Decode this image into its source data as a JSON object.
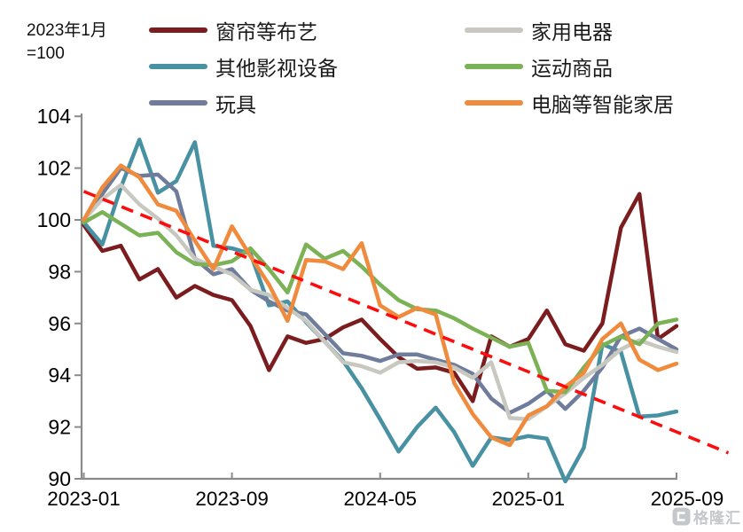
{
  "note": {
    "line1": "2023年1月",
    "line2": "=100"
  },
  "watermark": {
    "text": "格隆汇",
    "logo": "gelonghui-logo",
    "color": "#c4c8cb"
  },
  "axis_colors": {
    "axis": "#8a8a8a",
    "label": "#000000"
  },
  "chart_data": {
    "type": "line",
    "title": "",
    "xlabel": "",
    "ylabel": "",
    "ylim": [
      90,
      104
    ],
    "y_tick_step": 2,
    "grid": false,
    "legend_position": "top-two-columns",
    "x_months": [
      "2023-01",
      "2023-02",
      "2023-03",
      "2023-04",
      "2023-05",
      "2023-06",
      "2023-07",
      "2023-08",
      "2023-09",
      "2023-10",
      "2023-11",
      "2023-12",
      "2024-01",
      "2024-02",
      "2024-03",
      "2024-04",
      "2024-05",
      "2024-06",
      "2024-07",
      "2024-08",
      "2024-09",
      "2024-10",
      "2024-11",
      "2024-12",
      "2025-01",
      "2025-02",
      "2025-03",
      "2025-04",
      "2025-05",
      "2025-06",
      "2025-07",
      "2025-08",
      "2025-09"
    ],
    "x_tick_labels": [
      "2023-01",
      "2023-09",
      "2024-05",
      "2025-01",
      "2025-09"
    ],
    "x_tick_month_index": [
      0,
      8,
      16,
      24,
      32
    ],
    "series": [
      {
        "name": "窗帘等布艺",
        "color": "#7b1c1e",
        "values": [
          99.8,
          98.8,
          99.0,
          97.7,
          98.1,
          97.0,
          97.45,
          97.1,
          96.9,
          95.9,
          94.2,
          95.5,
          95.25,
          95.4,
          95.85,
          96.15,
          95.4,
          94.7,
          94.25,
          94.3,
          94.1,
          93.0,
          95.5,
          95.1,
          95.4,
          96.5,
          95.2,
          94.95,
          96.0,
          99.7,
          101.0,
          95.4,
          95.9
        ]
      },
      {
        "name": "其他影视设备",
        "color": "#4791a2",
        "values": [
          99.9,
          99.05,
          101.25,
          103.1,
          101.05,
          101.5,
          103.0,
          99.0,
          98.9,
          98.7,
          96.7,
          96.85,
          96.05,
          95.3,
          94.55,
          93.5,
          92.3,
          91.05,
          92.0,
          92.75,
          91.8,
          90.5,
          91.6,
          91.5,
          91.65,
          91.55,
          89.9,
          91.2,
          95.2,
          94.9,
          92.4,
          92.45,
          92.6
        ]
      },
      {
        "name": "玩具",
        "color": "#6f7c9b",
        "values": [
          100,
          101.0,
          102.0,
          101.7,
          101.75,
          101.1,
          98.5,
          97.9,
          98.1,
          97.3,
          96.85,
          96.5,
          96.35,
          95.6,
          94.85,
          94.75,
          94.55,
          94.8,
          94.8,
          94.6,
          94.4,
          94.05,
          93.1,
          92.55,
          92.9,
          93.4,
          92.7,
          93.4,
          94.3,
          95.5,
          95.8,
          95.4,
          95.0
        ]
      },
      {
        "name": "家用电器",
        "color": "#c8c8c0",
        "values": [
          100,
          100.8,
          101.35,
          100.6,
          100.05,
          99.4,
          98.5,
          98.2,
          97.9,
          97.3,
          97.1,
          96.6,
          96.1,
          95.3,
          94.5,
          94.35,
          94.1,
          94.5,
          94.55,
          94.5,
          94.3,
          93.9,
          94.5,
          92.35,
          92.3,
          92.8,
          93.3,
          93.9,
          94.4,
          95.0,
          95.35,
          95.1,
          94.9
        ]
      },
      {
        "name": "运动商品",
        "color": "#7ab255",
        "values": [
          99.9,
          100.3,
          99.85,
          99.4,
          99.5,
          98.75,
          98.3,
          98.25,
          98.4,
          98.9,
          98.1,
          97.2,
          99.05,
          98.5,
          98.8,
          98.2,
          97.5,
          96.9,
          96.55,
          96.5,
          96.2,
          95.8,
          95.45,
          95.1,
          95.25,
          93.4,
          93.35,
          94.3,
          95.15,
          95.5,
          95.2,
          96.0,
          96.15
        ]
      },
      {
        "name": "电脑等智能家居",
        "color": "#f08a3c",
        "values": [
          100,
          101.25,
          102.1,
          101.65,
          100.6,
          100.35,
          99.2,
          98.1,
          99.75,
          98.6,
          97.5,
          96.1,
          98.45,
          98.4,
          98.1,
          99.1,
          96.7,
          96.25,
          96.6,
          96.35,
          93.7,
          92.5,
          91.6,
          91.3,
          92.45,
          92.8,
          93.55,
          94.1,
          95.4,
          96.0,
          94.6,
          94.2,
          94.45
        ]
      }
    ],
    "trend_line": {
      "style": "dashed",
      "color": "#fb0d0d",
      "start_month_index": 0,
      "start_value": 101.1,
      "end_month_index": 34.8,
      "end_value": 91.0
    }
  },
  "legend_layout": [
    {
      "series_index": 0,
      "col": 0,
      "row": 0
    },
    {
      "series_index": 3,
      "col": 1,
      "row": 0
    },
    {
      "series_index": 1,
      "col": 0,
      "row": 1
    },
    {
      "series_index": 4,
      "col": 1,
      "row": 1
    },
    {
      "series_index": 2,
      "col": 0,
      "row": 2
    },
    {
      "series_index": 5,
      "col": 1,
      "row": 2
    }
  ]
}
